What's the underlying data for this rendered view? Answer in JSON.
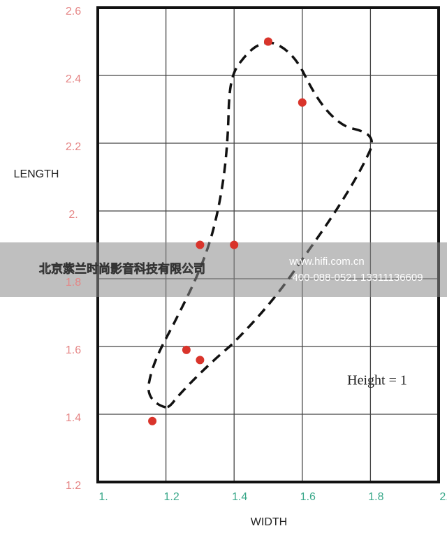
{
  "chart_data": {
    "type": "scatter",
    "xlabel": "WIDTH",
    "ylabel": "LENGTH",
    "annotation": "Height = 1",
    "x": [
      1.5,
      1.6,
      1.3,
      1.4,
      1.26,
      1.3,
      1.16
    ],
    "values": [
      2.5,
      2.32,
      1.9,
      1.9,
      1.59,
      1.56,
      1.38
    ],
    "color": "#d9342b",
    "xlim": [
      1,
      2
    ],
    "ylim": [
      1.2,
      2.6
    ],
    "xticks": [
      {
        "value": 1,
        "label": "1."
      },
      1.2,
      1.4,
      1.6,
      1.8,
      {
        "value": 2,
        "label": "2."
      }
    ],
    "yticks": [
      1.2,
      1.4,
      1.6,
      1.8,
      {
        "value": 2,
        "label": "2."
      },
      2.2,
      2.4,
      2.6
    ],
    "grid": true
  },
  "watermark": {
    "company": "北京紫兰时尚影音科技有限公司",
    "url": "www.hifi.com.cn",
    "phone": "400-088-0521  13311136609"
  }
}
